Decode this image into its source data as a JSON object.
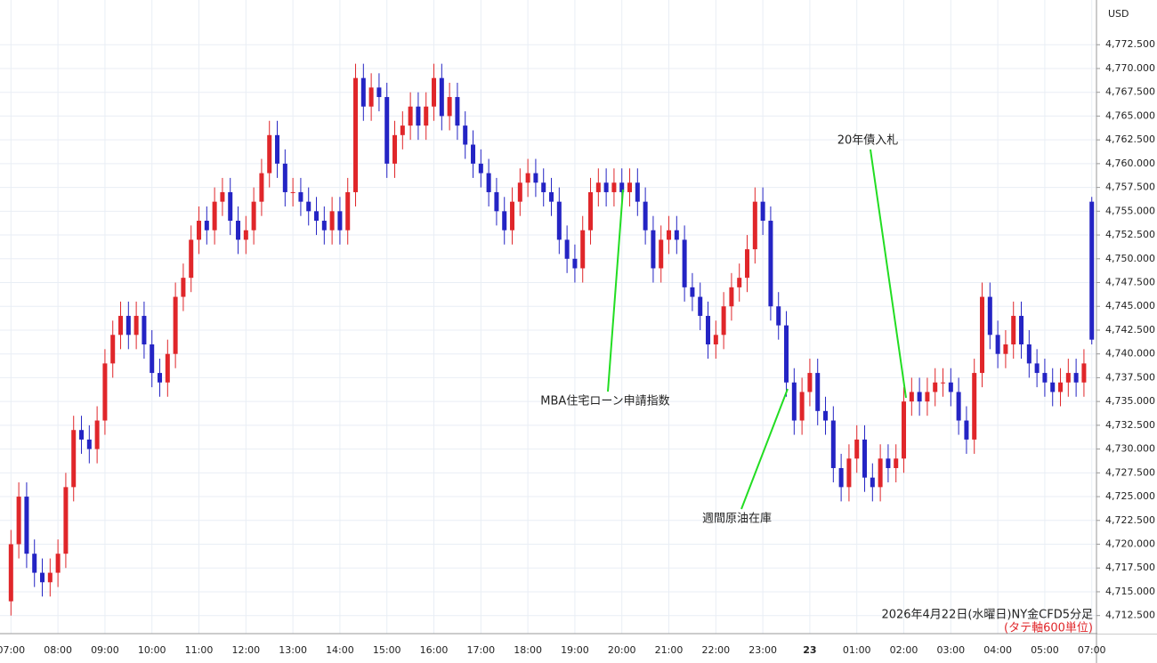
{
  "chart_data": {
    "type": "candlestick",
    "title": "2026年4月22日(水曜日)NY金CFD5分足",
    "subtitle": "(タテ軸600単位)",
    "currency": "USD",
    "annotations": [
      "MBA住宅ローン申請指数",
      "週間原油在庫",
      "20年債入札"
    ],
    "up_color": "#e0262a",
    "down_color": "#2424c4",
    "grid": true,
    "ylim": [
      4710.6,
      4777.2
    ],
    "yticks": [
      {
        "value": 4712.5,
        "label": "4,712.500"
      },
      {
        "value": 4715,
        "label": "4,715.000"
      },
      {
        "value": 4717.5,
        "label": "4,717.500"
      },
      {
        "value": 4720,
        "label": "4,720.000"
      },
      {
        "value": 4722.5,
        "label": "4,722.500"
      },
      {
        "value": 4725,
        "label": "4,725.000"
      },
      {
        "value": 4727.5,
        "label": "4,727.500"
      },
      {
        "value": 4730,
        "label": "4,730.000"
      },
      {
        "value": 4732.5,
        "label": "4,732.500"
      },
      {
        "value": 4735,
        "label": "4,735.000"
      },
      {
        "value": 4737.5,
        "label": "4,737.500"
      },
      {
        "value": 4740,
        "label": "4,740.000"
      },
      {
        "value": 4742.5,
        "label": "4,742.500"
      },
      {
        "value": 4745,
        "label": "4,745.000"
      },
      {
        "value": 4747.5,
        "label": "4,747.500"
      },
      {
        "value": 4750,
        "label": "4,750.000"
      },
      {
        "value": 4752.5,
        "label": "4,752.500"
      },
      {
        "value": 4755,
        "label": "4,755.000"
      },
      {
        "value": 4757.5,
        "label": "4,757.500"
      },
      {
        "value": 4760,
        "label": "4,760.000"
      },
      {
        "value": 4762.5,
        "label": "4,762.500"
      },
      {
        "value": 4765,
        "label": "4,765.000"
      },
      {
        "value": 4767.5,
        "label": "4,767.500"
      },
      {
        "value": 4770,
        "label": "4,770.000"
      },
      {
        "value": 4772.5,
        "label": "4,772.500"
      }
    ],
    "xlim": [
      -1.4,
      138.6
    ],
    "xticks": [
      {
        "value": 0,
        "label": "07:00"
      },
      {
        "value": 6,
        "label": "08:00"
      },
      {
        "value": 12,
        "label": "09:00"
      },
      {
        "value": 18,
        "label": "10:00"
      },
      {
        "value": 24,
        "label": "11:00"
      },
      {
        "value": 30,
        "label": "12:00"
      },
      {
        "value": 36,
        "label": "13:00"
      },
      {
        "value": 42,
        "label": "14:00"
      },
      {
        "value": 48,
        "label": "15:00"
      },
      {
        "value": 54,
        "label": "16:00"
      },
      {
        "value": 60,
        "label": "17:00"
      },
      {
        "value": 66,
        "label": "18:00"
      },
      {
        "value": 72,
        "label": "19:00"
      },
      {
        "value": 78,
        "label": "20:00"
      },
      {
        "value": 84,
        "label": "21:00"
      },
      {
        "value": 90,
        "label": "22:00"
      },
      {
        "value": 96,
        "label": "23:00"
      },
      {
        "value": 102,
        "label": "23"
      },
      {
        "value": 108,
        "label": "01:00"
      },
      {
        "value": 114,
        "label": "02:00"
      },
      {
        "value": 120,
        "label": "03:00"
      },
      {
        "value": 126,
        "label": "04:00"
      },
      {
        "value": 132,
        "label": "05:00"
      },
      {
        "value": 138,
        "label": "07:00"
      }
    ],
    "candles": [
      [
        4714,
        4721.5,
        4712.5,
        4720
      ],
      [
        4720,
        4726.5,
        4718.5,
        4725
      ],
      [
        4725,
        4726.5,
        4717.5,
        4719
      ],
      [
        4719,
        4720.5,
        4715.5,
        4717
      ],
      [
        4717,
        4718.5,
        4714.5,
        4716
      ],
      [
        4716,
        4718.5,
        4714.5,
        4717
      ],
      [
        4717,
        4720.5,
        4715.5,
        4719
      ],
      [
        4719,
        4727.5,
        4717.5,
        4726
      ],
      [
        4726,
        4733.5,
        4724.5,
        4732
      ],
      [
        4732,
        4733.5,
        4729.5,
        4731
      ],
      [
        4731,
        4732.5,
        4728.5,
        4730
      ],
      [
        4730,
        4734.5,
        4728.5,
        4733
      ],
      [
        4733,
        4740.5,
        4731.5,
        4739
      ],
      [
        4739,
        4743.5,
        4737.5,
        4742
      ],
      [
        4742,
        4745.5,
        4740.5,
        4744
      ],
      [
        4744,
        4745.5,
        4740.5,
        4742
      ],
      [
        4742,
        4745.5,
        4740.5,
        4744
      ],
      [
        4744,
        4745.5,
        4739.5,
        4741
      ],
      [
        4741,
        4742.5,
        4736.5,
        4738
      ],
      [
        4738,
        4739.5,
        4735.5,
        4737
      ],
      [
        4737,
        4741.5,
        4735.5,
        4740
      ],
      [
        4740,
        4747.5,
        4738.5,
        4746
      ],
      [
        4746,
        4749.5,
        4744.5,
        4748
      ],
      [
        4748,
        4753.5,
        4746.5,
        4752
      ],
      [
        4752,
        4755.5,
        4750.5,
        4754
      ],
      [
        4754,
        4755.5,
        4751.5,
        4753
      ],
      [
        4753,
        4757.5,
        4751.5,
        4756
      ],
      [
        4756,
        4758.5,
        4754.5,
        4757
      ],
      [
        4757,
        4758.5,
        4752.5,
        4754
      ],
      [
        4754,
        4755.5,
        4750.5,
        4752
      ],
      [
        4752,
        4754.5,
        4750.5,
        4753
      ],
      [
        4753,
        4757.5,
        4751.5,
        4756
      ],
      [
        4756,
        4760.5,
        4754.5,
        4759
      ],
      [
        4759,
        4764.5,
        4757.5,
        4763
      ],
      [
        4763,
        4764.5,
        4758.5,
        4760
      ],
      [
        4760,
        4761.5,
        4755.5,
        4757
      ],
      [
        4757,
        4758.5,
        4755.5,
        4757
      ],
      [
        4757,
        4758.5,
        4754.5,
        4756
      ],
      [
        4756,
        4757.5,
        4753.5,
        4755
      ],
      [
        4755,
        4756.5,
        4752.5,
        4754
      ],
      [
        4754,
        4755.5,
        4751.5,
        4753
      ],
      [
        4753,
        4756.5,
        4751.5,
        4755
      ],
      [
        4755,
        4756.5,
        4751.5,
        4753
      ],
      [
        4753,
        4758.5,
        4751.5,
        4757
      ],
      [
        4757,
        4770.5,
        4755.5,
        4769
      ],
      [
        4769,
        4770.5,
        4764.5,
        4766
      ],
      [
        4766,
        4769.5,
        4764.5,
        4768
      ],
      [
        4768,
        4769.5,
        4765.5,
        4767
      ],
      [
        4767,
        4768.5,
        4758.5,
        4760
      ],
      [
        4760,
        4764.5,
        4758.5,
        4763
      ],
      [
        4763,
        4765.5,
        4761.5,
        4764
      ],
      [
        4764,
        4767.5,
        4762.5,
        4766
      ],
      [
        4766,
        4767.5,
        4762.5,
        4764
      ],
      [
        4764,
        4767.5,
        4762.5,
        4766
      ],
      [
        4766,
        4770.5,
        4764.5,
        4769
      ],
      [
        4769,
        4770.5,
        4763.5,
        4765
      ],
      [
        4765,
        4768.5,
        4763.5,
        4767
      ],
      [
        4767,
        4768.5,
        4762.5,
        4764
      ],
      [
        4764,
        4765.5,
        4760.5,
        4762
      ],
      [
        4762,
        4763.5,
        4758.5,
        4760
      ],
      [
        4760,
        4761.5,
        4757.5,
        4759
      ],
      [
        4759,
        4760.5,
        4755.5,
        4757
      ],
      [
        4757,
        4758.5,
        4753.5,
        4755
      ],
      [
        4755,
        4756.5,
        4751.5,
        4753
      ],
      [
        4753,
        4757.5,
        4751.5,
        4756
      ],
      [
        4756,
        4759.5,
        4754.5,
        4758
      ],
      [
        4758,
        4760.5,
        4756.5,
        4759
      ],
      [
        4759,
        4760.5,
        4756.5,
        4758
      ],
      [
        4758,
        4759.5,
        4755.5,
        4757
      ],
      [
        4757,
        4758.5,
        4754.5,
        4756
      ],
      [
        4756,
        4757.5,
        4750.5,
        4752
      ],
      [
        4752,
        4753.5,
        4748.5,
        4750
      ],
      [
        4750,
        4751.5,
        4747.5,
        4749
      ],
      [
        4749,
        4754.5,
        4747.5,
        4753
      ],
      [
        4753,
        4758.5,
        4751.5,
        4757
      ],
      [
        4757,
        4759.5,
        4755.5,
        4758
      ],
      [
        4758,
        4759.5,
        4755.5,
        4757
      ],
      [
        4757,
        4759.5,
        4755.5,
        4758
      ],
      [
        4758,
        4759.5,
        4755.5,
        4757
      ],
      [
        4757,
        4759.5,
        4755.5,
        4758
      ],
      [
        4758,
        4759.5,
        4754.5,
        4756
      ],
      [
        4756,
        4757.5,
        4751.5,
        4753
      ],
      [
        4753,
        4754.5,
        4747.5,
        4749
      ],
      [
        4749,
        4753.5,
        4747.5,
        4752
      ],
      [
        4752,
        4754.5,
        4750.5,
        4753
      ],
      [
        4753,
        4754.5,
        4750.5,
        4752
      ],
      [
        4752,
        4753.5,
        4745.5,
        4747
      ],
      [
        4747,
        4748.5,
        4744.5,
        4746
      ],
      [
        4746,
        4747.5,
        4742.5,
        4744
      ],
      [
        4744,
        4745.5,
        4739.5,
        4741
      ],
      [
        4741,
        4743.5,
        4739.5,
        4742
      ],
      [
        4742,
        4746.5,
        4740.5,
        4745
      ],
      [
        4745,
        4748.5,
        4743.5,
        4747
      ],
      [
        4747,
        4749.5,
        4745.5,
        4748
      ],
      [
        4748,
        4752.5,
        4746.5,
        4751
      ],
      [
        4751,
        4757.5,
        4749.5,
        4756
      ],
      [
        4756,
        4757.5,
        4752.5,
        4754
      ],
      [
        4754,
        4755.5,
        4743.5,
        4745
      ],
      [
        4745,
        4746.5,
        4741.5,
        4743
      ],
      [
        4743,
        4744.5,
        4735.5,
        4737
      ],
      [
        4737,
        4738.5,
        4731.5,
        4733
      ],
      [
        4733,
        4737.5,
        4731.5,
        4736
      ],
      [
        4736,
        4739.5,
        4734.5,
        4738
      ],
      [
        4738,
        4739.5,
        4732.5,
        4734
      ],
      [
        4734,
        4735.5,
        4731.5,
        4733
      ],
      [
        4733,
        4734.5,
        4726.5,
        4728
      ],
      [
        4728,
        4729.5,
        4724.5,
        4726
      ],
      [
        4726,
        4730.5,
        4724.5,
        4729
      ],
      [
        4729,
        4732.5,
        4727.5,
        4731
      ],
      [
        4731,
        4732.5,
        4725.5,
        4727
      ],
      [
        4727,
        4728.5,
        4724.5,
        4726
      ],
      [
        4726,
        4730.5,
        4724.5,
        4729
      ],
      [
        4729,
        4730.5,
        4726.5,
        4728
      ],
      [
        4728,
        4730.5,
        4726.5,
        4729
      ],
      [
        4729,
        4736.5,
        4727.5,
        4735
      ],
      [
        4735,
        4737.5,
        4733.5,
        4736
      ],
      [
        4736,
        4737.5,
        4733.5,
        4735
      ],
      [
        4735,
        4737.5,
        4733.5,
        4736
      ],
      [
        4736,
        4738.5,
        4734.5,
        4737
      ],
      [
        4737,
        4738.5,
        4735.5,
        4737
      ],
      [
        4737,
        4738.5,
        4734.5,
        4736
      ],
      [
        4736,
        4737.5,
        4731.5,
        4733
      ],
      [
        4733,
        4734.5,
        4729.5,
        4731
      ],
      [
        4731,
        4739.5,
        4729.5,
        4738
      ],
      [
        4738,
        4747.5,
        4736.5,
        4746
      ],
      [
        4746,
        4747.5,
        4740.5,
        4742
      ],
      [
        4742,
        4743.5,
        4738.5,
        4740
      ],
      [
        4740,
        4742.5,
        4738.5,
        4741
      ],
      [
        4741,
        4745.5,
        4739.5,
        4744
      ],
      [
        4744,
        4745.5,
        4739.5,
        4741
      ],
      [
        4741,
        4742.5,
        4737.5,
        4739
      ],
      [
        4739,
        4740.5,
        4736.5,
        4738
      ],
      [
        4738,
        4739.5,
        4735.5,
        4737
      ],
      [
        4737,
        4738.5,
        4734.5,
        4736
      ],
      [
        4736,
        4738.5,
        4734.5,
        4737
      ],
      [
        4737,
        4739.5,
        4735.5,
        4738
      ],
      [
        4738,
        4739.5,
        4735.5,
        4737
      ],
      [
        4737,
        4740.5,
        4735.5,
        4739
      ],
      [
        4756,
        4756.5,
        4741,
        4741.5
      ]
    ]
  }
}
